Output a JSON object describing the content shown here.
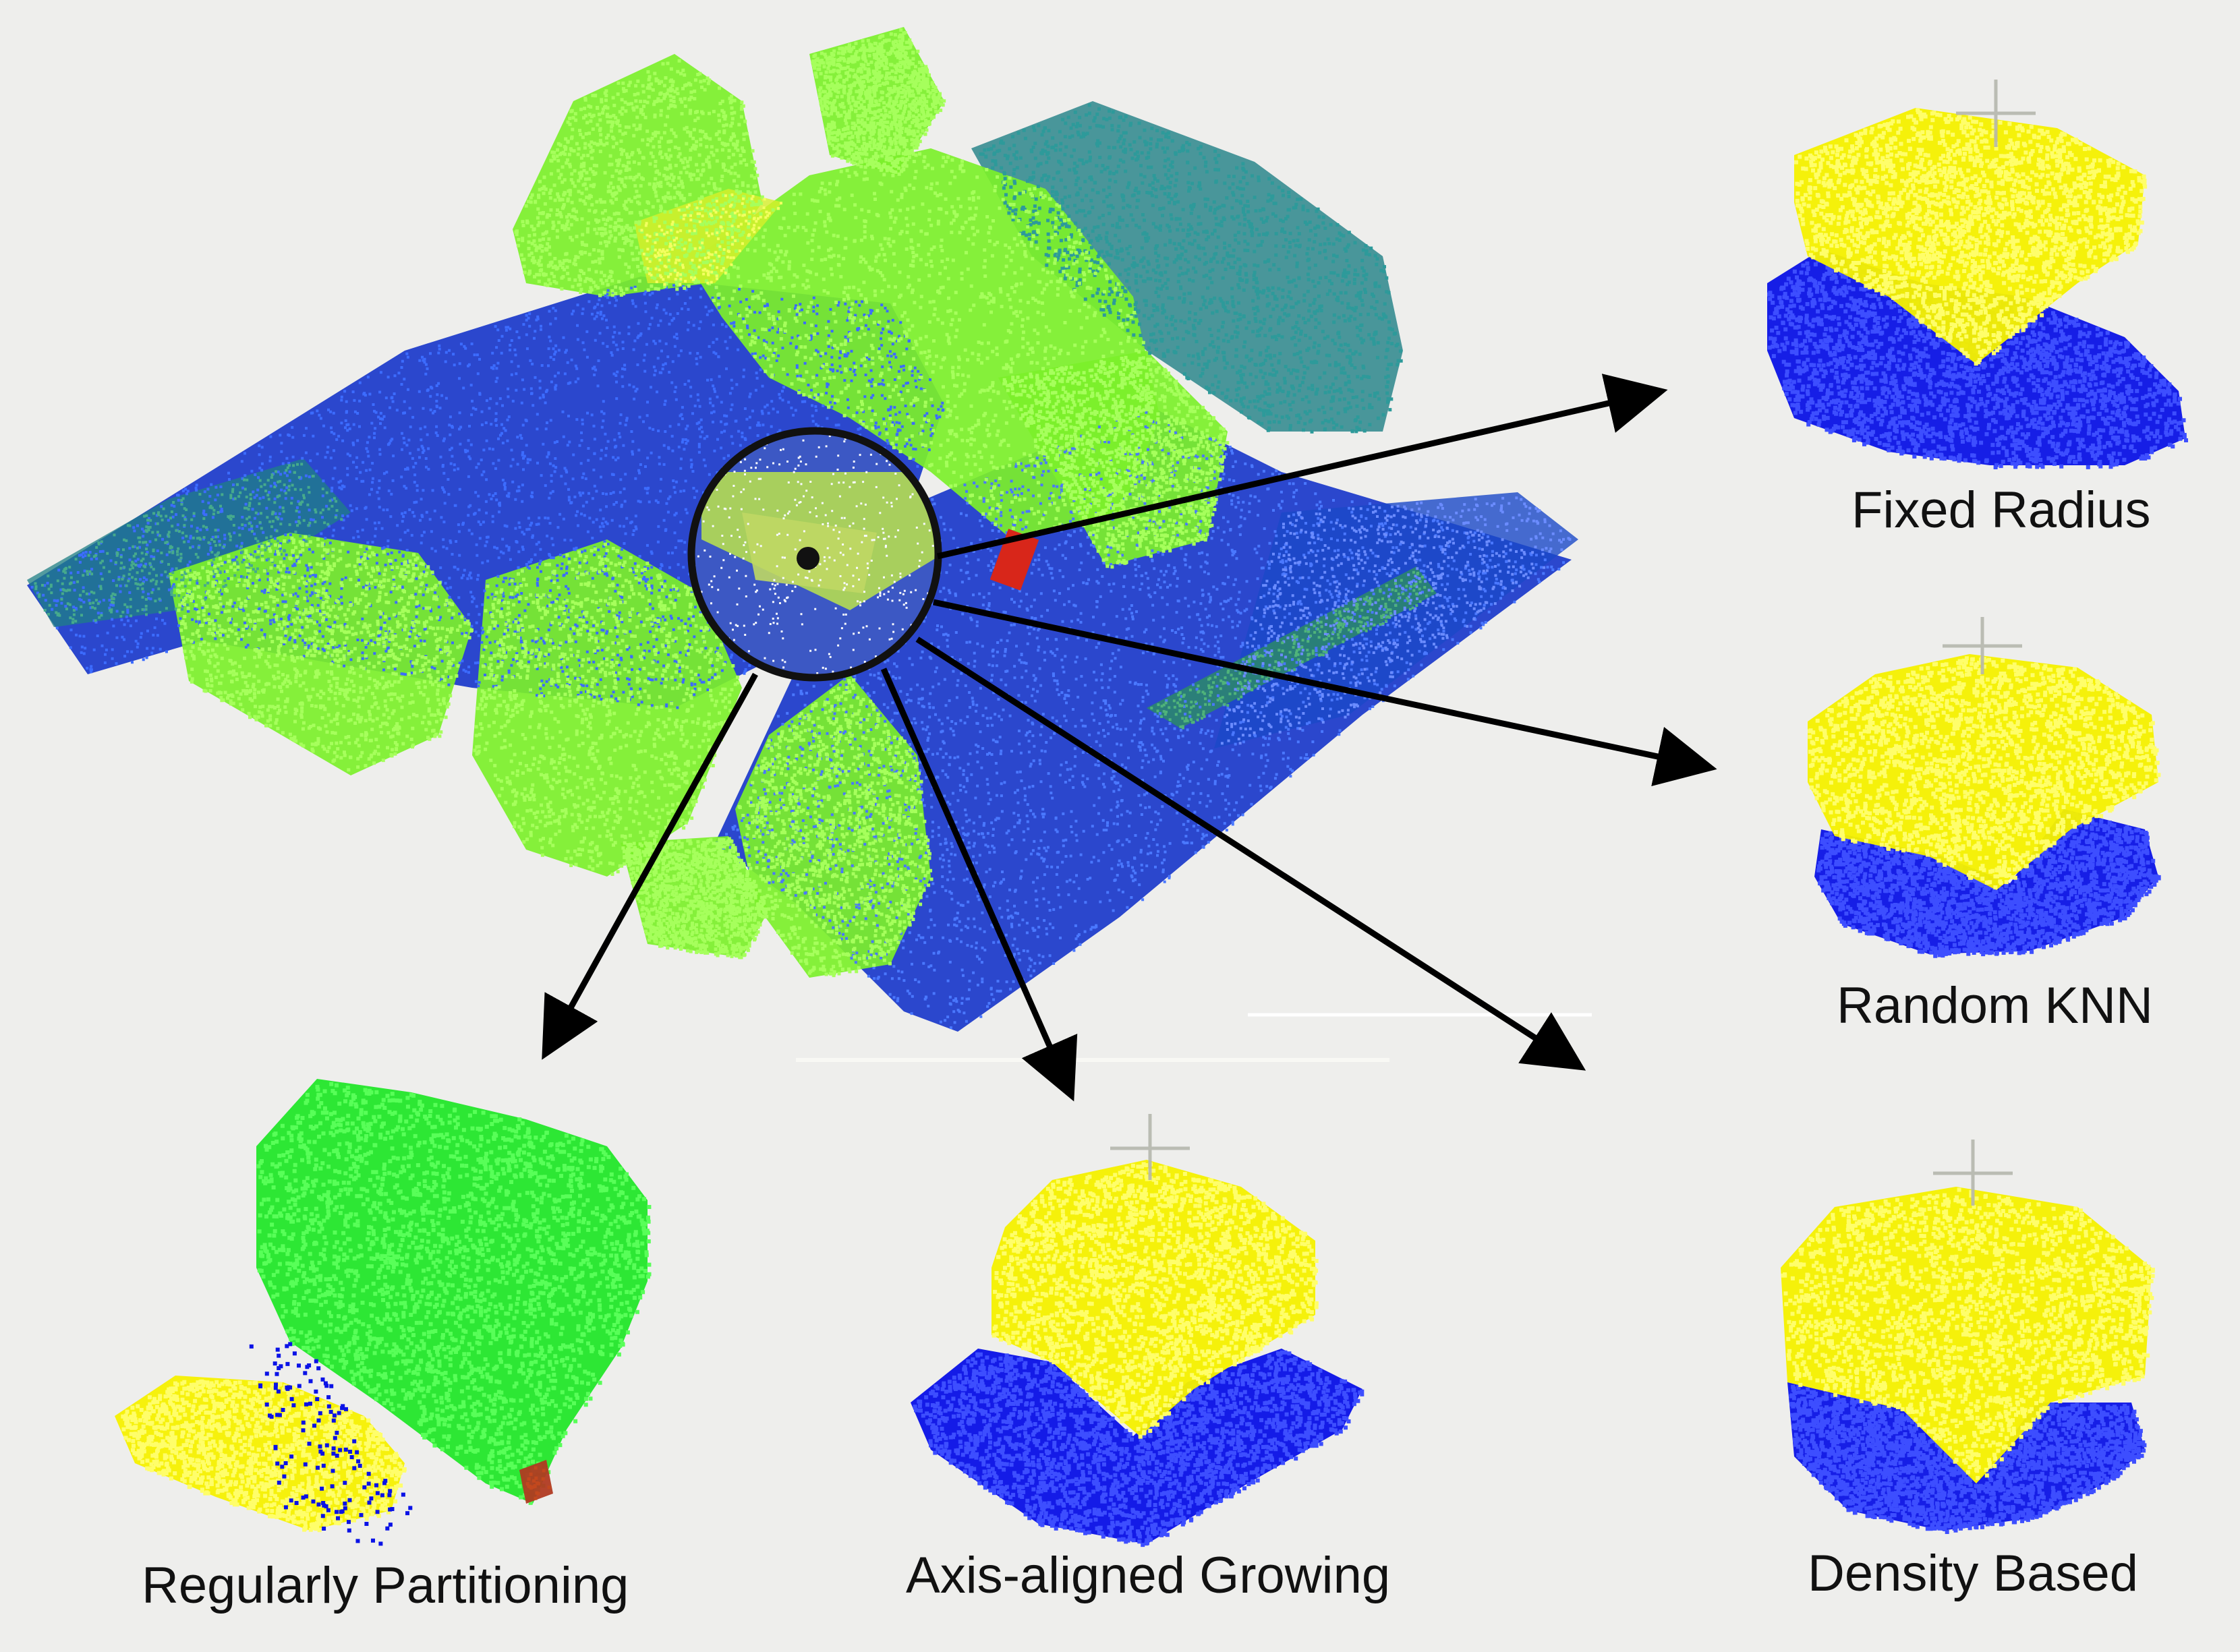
{
  "labels": {
    "fixed_radius": "Fixed Radius",
    "random_knn": "Random KNN",
    "density_based": "Density Based",
    "axis_aligned": "Axis-aligned Growing",
    "regular_partition": "Regularly Partitioning"
  },
  "colors": {
    "background": "#eeeeec",
    "ground_blue": "#1030c8",
    "vegetation_green": "#7cf02a",
    "teal": "#1f7f86",
    "yellow": "#f5f000",
    "blue_points": "#0a12e6",
    "bright_green": "#22e62a",
    "red": "#e0281c",
    "arrow": "#000000"
  },
  "icons": {
    "magnifier": "magnifier-circle-icon",
    "crosshair": "crosshair-icon",
    "arrow": "arrow-icon"
  }
}
